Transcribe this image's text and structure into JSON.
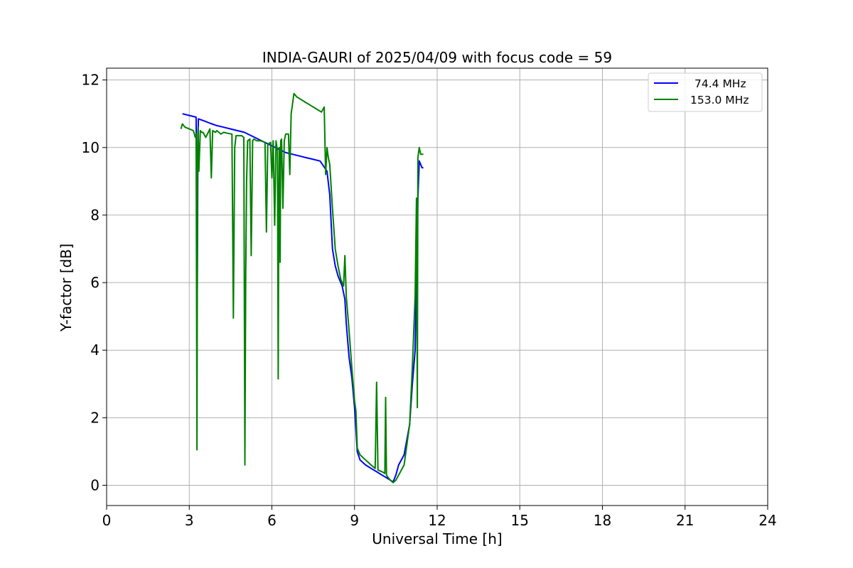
{
  "chart_data": {
    "type": "line",
    "title": "INDIA-GAURI of 2025/04/09 with focus code = 59",
    "xlabel": "Universal Time [h]",
    "ylabel": "Y-factor [dB]",
    "xlim": [
      0,
      24
    ],
    "ylim": [
      -0.6,
      12.35
    ],
    "xticks": [
      0,
      3,
      6,
      9,
      12,
      15,
      18,
      21,
      24
    ],
    "yticks": [
      0,
      2,
      4,
      6,
      8,
      10,
      12
    ],
    "xtick_labels": [
      "0",
      "3",
      "6",
      "9",
      "12",
      "15",
      "18",
      "21",
      "24"
    ],
    "ytick_labels": [
      "0",
      "2",
      "4",
      "6",
      "8",
      "10",
      "12"
    ],
    "grid": true,
    "legend_position": "top-right",
    "series": [
      {
        "name": "74.4 MHz",
        "color": "#0000ff",
        "x": [
          2.75,
          3.0,
          3.25,
          3.27,
          3.29,
          3.31,
          3.33,
          3.5,
          3.75,
          4.0,
          4.25,
          4.5,
          4.75,
          5.0,
          5.25,
          5.5,
          5.75,
          6.0,
          6.25,
          6.5,
          6.75,
          7.0,
          7.25,
          7.5,
          7.75,
          8.0,
          8.1,
          8.2,
          8.3,
          8.4,
          8.5,
          8.55,
          8.6,
          8.65,
          8.7,
          8.8,
          8.9,
          9.0,
          9.1,
          9.2,
          9.4,
          9.6,
          9.8,
          10.0,
          10.2,
          10.4,
          10.5,
          10.6,
          10.8,
          11.0,
          11.1,
          11.2,
          11.3,
          11.35,
          11.4,
          11.45,
          11.5
        ],
        "y": [
          11.0,
          10.95,
          10.9,
          9.0,
          5.7,
          9.3,
          10.85,
          10.8,
          10.72,
          10.65,
          10.6,
          10.55,
          10.5,
          10.45,
          10.35,
          10.25,
          10.15,
          10.05,
          9.95,
          9.85,
          9.8,
          9.75,
          9.7,
          9.65,
          9.6,
          9.3,
          8.6,
          7.0,
          6.5,
          6.2,
          6.0,
          5.9,
          5.7,
          5.5,
          4.8,
          3.8,
          3.2,
          2.3,
          1.0,
          0.75,
          0.6,
          0.5,
          0.4,
          0.3,
          0.2,
          0.1,
          0.3,
          0.6,
          0.9,
          1.8,
          3.0,
          4.0,
          8.5,
          9.6,
          9.5,
          9.4,
          9.4
        ]
      },
      {
        "name": "153.0 MHz",
        "color": "#008000",
        "x": [
          2.7,
          2.75,
          2.85,
          3.0,
          3.15,
          3.22,
          3.25,
          3.28,
          3.3,
          3.32,
          3.35,
          3.4,
          3.45,
          3.5,
          3.6,
          3.75,
          3.8,
          3.85,
          3.95,
          4.0,
          4.15,
          4.25,
          4.4,
          4.55,
          4.6,
          4.65,
          4.7,
          4.75,
          4.9,
          4.98,
          5.02,
          5.05,
          5.08,
          5.12,
          5.2,
          5.25,
          5.3,
          5.35,
          5.45,
          5.6,
          5.75,
          5.8,
          5.85,
          5.95,
          6.0,
          6.05,
          6.1,
          6.15,
          6.2,
          6.23,
          6.25,
          6.27,
          6.3,
          6.32,
          6.35,
          6.4,
          6.45,
          6.5,
          6.6,
          6.65,
          6.7,
          6.75,
          6.8,
          6.9,
          7.0,
          7.2,
          7.4,
          7.6,
          7.8,
          7.9,
          7.95,
          8.0,
          8.05,
          8.1,
          8.2,
          8.3,
          8.4,
          8.5,
          8.6,
          8.65,
          8.7,
          8.8,
          8.9,
          9.0,
          9.05,
          9.1,
          9.2,
          9.4,
          9.6,
          9.75,
          9.8,
          9.85,
          10.0,
          10.1,
          10.13,
          10.16,
          10.2,
          10.3,
          10.4,
          10.5,
          10.6,
          10.8,
          11.0,
          11.1,
          11.2,
          11.25,
          11.28,
          11.3,
          11.35,
          11.4,
          11.5
        ],
        "y": [
          10.55,
          10.7,
          10.6,
          10.55,
          10.5,
          10.3,
          10.4,
          1.05,
          9.7,
          10.6,
          9.3,
          10.5,
          10.45,
          10.45,
          10.3,
          10.55,
          9.1,
          10.5,
          10.45,
          10.5,
          10.4,
          10.45,
          10.42,
          10.4,
          4.95,
          10.0,
          10.35,
          10.35,
          10.35,
          10.3,
          0.6,
          6.2,
          9.0,
          10.2,
          10.25,
          6.8,
          10.2,
          10.25,
          10.2,
          10.2,
          10.15,
          7.5,
          10.1,
          10.15,
          9.1,
          10.2,
          7.7,
          10.2,
          9.9,
          3.15,
          8.4,
          10.0,
          6.6,
          10.2,
          10.25,
          8.2,
          10.2,
          10.4,
          10.4,
          9.2,
          11.0,
          11.3,
          11.6,
          11.5,
          11.45,
          11.35,
          11.25,
          11.15,
          11.05,
          11.2,
          9.2,
          10.0,
          9.7,
          9.5,
          8.2,
          7.0,
          6.5,
          6.1,
          5.9,
          6.8,
          5.6,
          4.6,
          3.5,
          2.5,
          2.2,
          1.1,
          0.9,
          0.75,
          0.6,
          0.5,
          3.05,
          0.45,
          0.4,
          0.35,
          2.6,
          0.3,
          0.25,
          0.15,
          0.08,
          0.15,
          0.3,
          0.6,
          1.8,
          3.5,
          5.6,
          8.5,
          2.3,
          9.7,
          10.0,
          9.8,
          9.8
        ]
      }
    ]
  }
}
